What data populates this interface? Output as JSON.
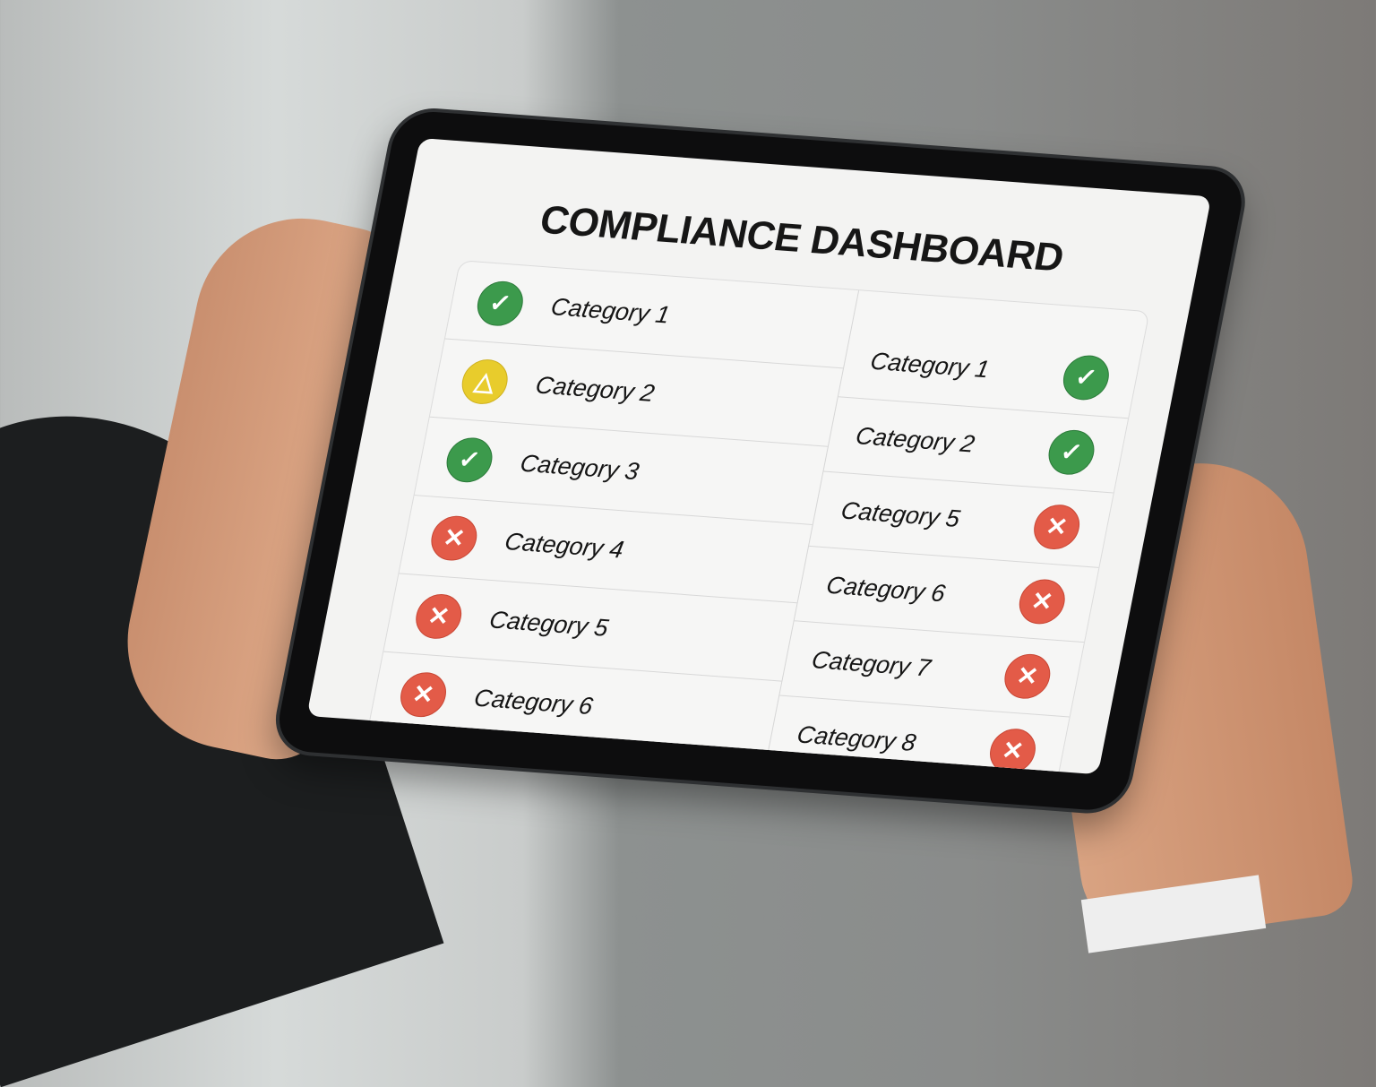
{
  "title": "COMPLIANCE DASHBOARD",
  "colors": {
    "pass": "#3c9a4c",
    "warning": "#e8cc2c",
    "fail": "#e35b48"
  },
  "left_column": [
    {
      "label": "Category 1",
      "status": "pass",
      "icon": "check-icon"
    },
    {
      "label": "Category 2",
      "status": "warning",
      "icon": "warning-triangle-icon"
    },
    {
      "label": "Category 3",
      "status": "pass",
      "icon": "check-icon"
    },
    {
      "label": "Category 4",
      "status": "fail",
      "icon": "x-icon"
    },
    {
      "label": "Category 5",
      "status": "fail",
      "icon": "x-icon"
    },
    {
      "label": "Category 6",
      "status": "fail",
      "icon": "x-icon"
    }
  ],
  "right_column": [
    {
      "label": "Category 1",
      "status": "pass",
      "icon": "check-icon"
    },
    {
      "label": "Category 2",
      "status": "pass",
      "icon": "check-icon"
    },
    {
      "label": "Category 5",
      "status": "fail",
      "icon": "x-icon"
    },
    {
      "label": "Category 6",
      "status": "fail",
      "icon": "x-icon"
    },
    {
      "label": "Category 7",
      "status": "fail",
      "icon": "x-icon"
    },
    {
      "label": "Category 8",
      "status": "fail",
      "icon": "x-icon"
    }
  ]
}
